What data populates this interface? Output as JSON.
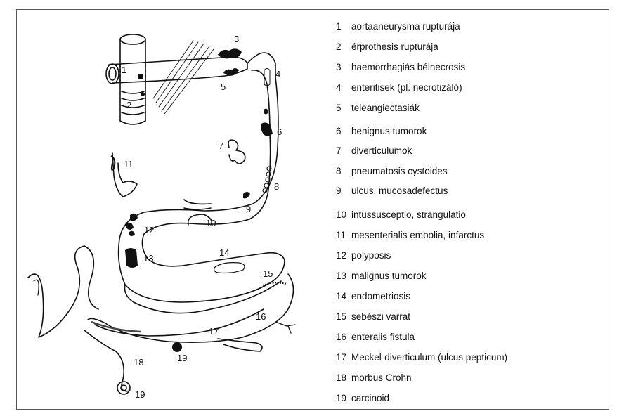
{
  "legend": [
    {
      "number": "1",
      "text": "aortaaneurysma rupturája"
    },
    {
      "number": "2",
      "text": "érprothesis rupturája"
    },
    {
      "number": "3",
      "text": "haemorrhagiás bélnecrosis"
    },
    {
      "number": "4",
      "text": "enteritisek (pl. necrotizáló)"
    },
    {
      "number": "5",
      "text": "teleangiectasiák"
    },
    {
      "number": "6",
      "text": "benignus tumorok"
    },
    {
      "number": "7",
      "text": "diverticulumok"
    },
    {
      "number": "8",
      "text": "pneumatosis cystoides"
    },
    {
      "number": "9",
      "text": "ulcus, mucosadefectus"
    },
    {
      "number": "10",
      "text": "intussusceptio, strangulatio"
    },
    {
      "number": "11",
      "text": "mesenterialis embolia, infarctus"
    },
    {
      "number": "12",
      "text": "polyposis"
    },
    {
      "number": "13",
      "text": "malignus tumorok"
    },
    {
      "number": "14",
      "text": "endometriosis"
    },
    {
      "number": "15",
      "text": "sebészi varrat"
    },
    {
      "number": "16",
      "text": "enteralis fistula"
    },
    {
      "number": "17",
      "text": "Meckel-diverticulum (ulcus pepticum)"
    },
    {
      "number": "18",
      "text": "morbus Crohn"
    },
    {
      "number": "19",
      "text": "carcinoid"
    }
  ],
  "diagram_labels": [
    {
      "text": "1"
    },
    {
      "text": "2"
    },
    {
      "text": "3"
    },
    {
      "text": "4"
    },
    {
      "text": "5"
    },
    {
      "text": "6"
    },
    {
      "text": "7"
    },
    {
      "text": "8"
    },
    {
      "text": "9"
    },
    {
      "text": "10"
    },
    {
      "text": "11"
    },
    {
      "text": "12"
    },
    {
      "text": "13"
    },
    {
      "text": "14"
    },
    {
      "text": "15"
    },
    {
      "text": "16"
    },
    {
      "text": "17"
    },
    {
      "text": "18"
    },
    {
      "text": "19"
    }
  ]
}
